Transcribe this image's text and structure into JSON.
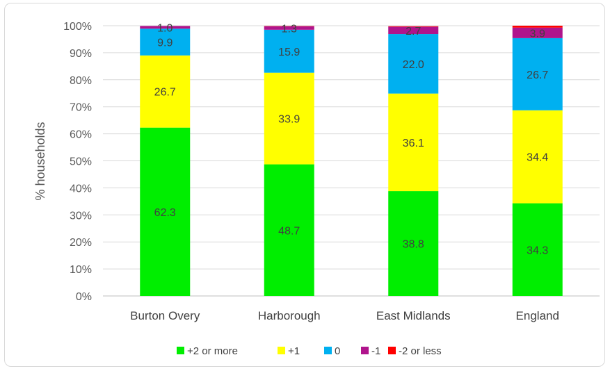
{
  "chart_data": {
    "type": "bar",
    "stacked": true,
    "categories": [
      "Burton Overy",
      "Harborough",
      "East Midlands",
      "England"
    ],
    "series": [
      {
        "name": "+2 or more",
        "color": "#00ee00",
        "values": [
          62.3,
          48.7,
          38.8,
          34.3
        ]
      },
      {
        "name": "+1",
        "color": "#ffff00",
        "values": [
          26.7,
          33.9,
          36.1,
          34.4
        ]
      },
      {
        "name": "0",
        "color": "#00b0f0",
        "values": [
          9.9,
          15.9,
          22.0,
          26.7
        ]
      },
      {
        "name": "-1",
        "color": "#b0148c",
        "values": [
          1.0,
          1.3,
          2.7,
          3.9
        ]
      },
      {
        "name": "-2 or less",
        "color": "#ff0000",
        "values": [
          0.0,
          0.1,
          0.2,
          0.7
        ]
      }
    ],
    "data_labels": [
      [
        "62.3",
        "26.7",
        "9.9",
        "1.0",
        ""
      ],
      [
        "48.7",
        "33.9",
        "15.9",
        "1.3",
        ""
      ],
      [
        "38.8",
        "36.1",
        "22.0",
        "2.7",
        ""
      ],
      [
        "34.3",
        "34.4",
        "26.7",
        "3.9",
        ""
      ]
    ],
    "yticks": [
      "0%",
      "10%",
      "20%",
      "30%",
      "40%",
      "50%",
      "60%",
      "70%",
      "80%",
      "90%",
      "100%"
    ],
    "ylim": [
      0,
      100
    ],
    "ylabel": "% households",
    "xlabel": "",
    "title": "",
    "grid": true,
    "legend_position": "bottom"
  }
}
